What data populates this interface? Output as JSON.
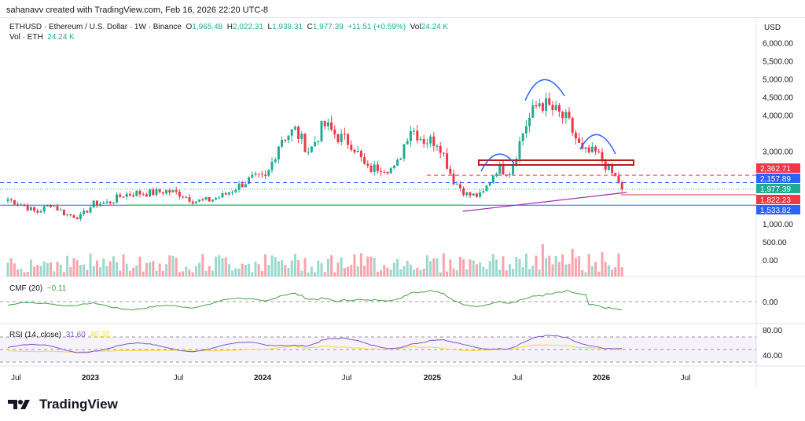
{
  "credit": "sahanavv created with TradingView.com, Feb 16, 2026 22:20 UTC-8",
  "legend": {
    "symbol": "ETHUSD · Ethereum / U.S. Dollar · 1W · Binance",
    "o_label": "O",
    "o": "1,965.48",
    "h_label": "H",
    "h": "2,022.31",
    "l_label": "L",
    "l": "1,938.31",
    "c_label": "C",
    "c": "1,977.39",
    "change": "+11.51 (+0.59%)",
    "vol_label": "Vol",
    "vol": "24.24 K",
    "vol_row_label": "Vol · ETH",
    "vol_row_value": "24.24 K"
  },
  "currency": "USD",
  "price_ticks": [
    "6,000.00",
    "5,500.00",
    "5,000.00",
    "4,500.00",
    "4,000.00",
    "3,000.00",
    "1,000.00",
    "500.00",
    "0.00"
  ],
  "price_tags": [
    {
      "text": "2,362.71",
      "color": "#f23645"
    },
    {
      "text": "2,157.89",
      "color": "#2962ff"
    },
    {
      "text": "1,977.39",
      "color": "#22ab94"
    },
    {
      "text": "1,822.23",
      "color": "#f23645"
    },
    {
      "text": "1,533.82",
      "color": "#2962ff"
    }
  ],
  "cmf": {
    "label": "CMF (20)",
    "value": "−0.11",
    "tick": "0.00",
    "color": "#43a047"
  },
  "rsi": {
    "label": "RSI (14, close)",
    "value": "31.60",
    "ma": "40.32",
    "ticks": [
      "80.00",
      "40.00"
    ],
    "color": "#7e57c2",
    "ma_color": "#fdd835"
  },
  "time_ticks": [
    "Jul",
    "2023",
    "Jul",
    "2024",
    "Jul",
    "2025",
    "Jul",
    "2026",
    "Jul"
  ],
  "colors": {
    "up": "#22ab94",
    "down": "#f23645"
  },
  "chart_data": {
    "type": "candlestick",
    "interval": "1W",
    "monthly_close": {
      "dates": [
        "2022-07",
        "2022-08",
        "2022-09",
        "2022-10",
        "2022-11",
        "2022-12",
        "2023-01",
        "2023-02",
        "2023-03",
        "2023-04",
        "2023-05",
        "2023-06",
        "2023-07",
        "2023-08",
        "2023-09",
        "2023-10",
        "2023-11",
        "2023-12",
        "2024-01",
        "2024-02",
        "2024-03",
        "2024-04",
        "2024-05",
        "2024-06",
        "2024-07",
        "2024-08",
        "2024-09",
        "2024-10",
        "2024-11",
        "2024-12",
        "2025-01",
        "2025-02",
        "2025-03",
        "2025-04",
        "2025-05",
        "2025-06",
        "2025-07",
        "2025-08",
        "2025-09",
        "2025-10",
        "2025-11",
        "2025-12",
        "2026-01",
        "2026-02"
      ],
      "values": [
        1700,
        1550,
        1330,
        1570,
        1290,
        1200,
        1580,
        1600,
        1820,
        1870,
        1870,
        1930,
        1850,
        1650,
        1670,
        1800,
        2050,
        2280,
        2280,
        3380,
        3600,
        3010,
        3760,
        3430,
        3230,
        2510,
        2600,
        2520,
        3700,
        3330,
        3300,
        2230,
        1820,
        1790,
        2530,
        2480,
        3700,
        4400,
        4150,
        3850,
        2990,
        2970,
        2450,
        1977
      ]
    },
    "levels": [
      2362.71,
      2157.89,
      1977.39,
      1822.23,
      1533.82
    ],
    "ylim": [
      0,
      6000
    ]
  }
}
